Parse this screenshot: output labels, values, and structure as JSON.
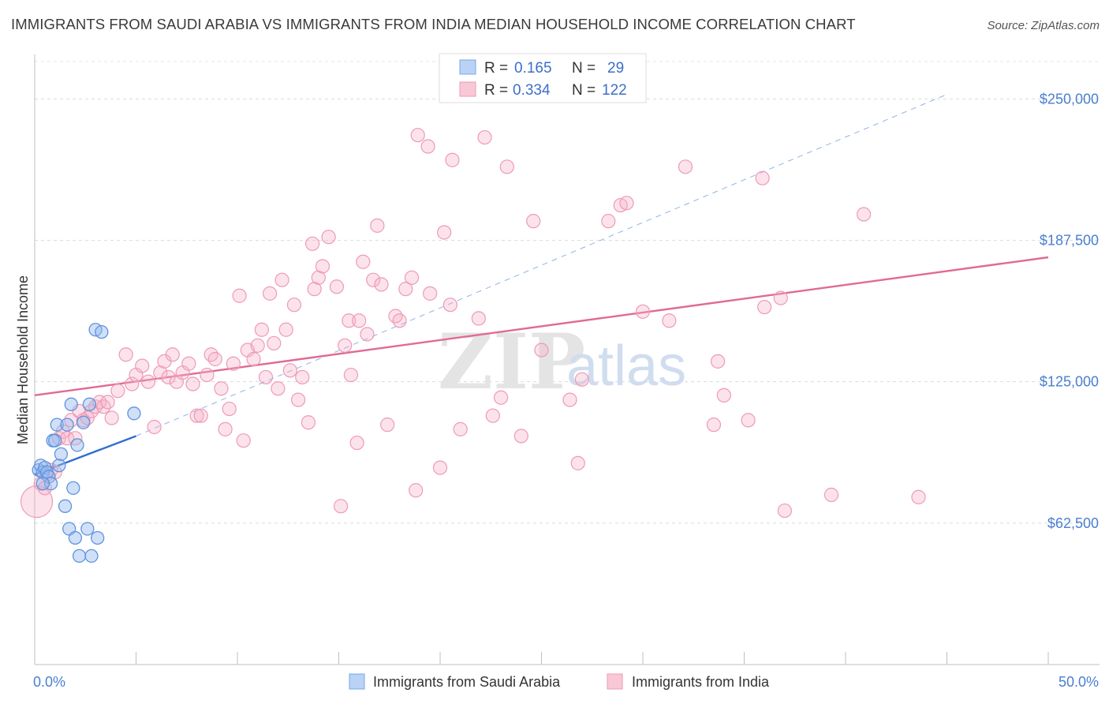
{
  "title": "IMMIGRANTS FROM SAUDI ARABIA VS IMMIGRANTS FROM INDIA MEDIAN HOUSEHOLD INCOME CORRELATION CHART",
  "source": "Source: ZipAtlas.com",
  "watermark": {
    "zip": "ZIP",
    "atlas": "atlas"
  },
  "legend_box": {
    "r_label": "R =",
    "n_label": "N =",
    "rows": [
      {
        "r": "0.165",
        "n": "29"
      },
      {
        "r": "0.334",
        "n": "122"
      }
    ]
  },
  "chart_data": {
    "type": "scatter",
    "ylabel": "Median Household Income",
    "x_tick_labels": [
      "0.0%",
      "50.0%"
    ],
    "y_tick_labels": [
      "$62,500",
      "$125,000",
      "$187,500",
      "$250,000"
    ],
    "y_ticks": [
      62500,
      125000,
      187500,
      250000
    ],
    "xlim": [
      0,
      50
    ],
    "ylim": [
      0,
      270000
    ],
    "colors": {
      "saudi": "#6fa0e8",
      "india": "#ee8aaa",
      "saudi_line": "#2f6fcf",
      "india_line": "#e06a95"
    },
    "series": [
      {
        "name": "Immigrants from Saudi Arabia",
        "r": 0.165,
        "n": 29,
        "trend": {
          "x": [
            0,
            5
          ],
          "y": [
            84000,
            101000
          ]
        },
        "trend_extended": {
          "x": [
            5,
            45
          ],
          "y": [
            101000,
            252000
          ]
        },
        "points": [
          [
            0.2,
            86000
          ],
          [
            0.3,
            88000
          ],
          [
            0.4,
            85000
          ],
          [
            0.5,
            87000
          ],
          [
            0.6,
            85000
          ],
          [
            0.7,
            83000
          ],
          [
            0.8,
            80000
          ],
          [
            0.9,
            99000
          ],
          [
            1.0,
            99000
          ],
          [
            1.1,
            106000
          ],
          [
            1.2,
            88000
          ],
          [
            1.3,
            93000
          ],
          [
            1.5,
            70000
          ],
          [
            1.6,
            106000
          ],
          [
            1.7,
            60000
          ],
          [
            1.8,
            115000
          ],
          [
            1.9,
            78000
          ],
          [
            2.0,
            56000
          ],
          [
            2.1,
            97000
          ],
          [
            2.2,
            48000
          ],
          [
            2.4,
            107000
          ],
          [
            2.6,
            60000
          ],
          [
            2.7,
            115000
          ],
          [
            2.8,
            48000
          ],
          [
            3.0,
            148000
          ],
          [
            3.1,
            56000
          ],
          [
            3.3,
            147000
          ],
          [
            4.9,
            111000
          ],
          [
            0.4,
            80000
          ]
        ]
      },
      {
        "name": "Immigrants from India",
        "r": 0.334,
        "n": 122,
        "trend": {
          "x": [
            0,
            50
          ],
          "y": [
            119000,
            180000
          ]
        },
        "points": [
          [
            0.1,
            72000
          ],
          [
            0.3,
            80000
          ],
          [
            0.5,
            78000
          ],
          [
            0.6,
            84000
          ],
          [
            0.8,
            86000
          ],
          [
            1.0,
            85000
          ],
          [
            1.2,
            100000
          ],
          [
            1.4,
            103000
          ],
          [
            1.6,
            100000
          ],
          [
            1.8,
            108000
          ],
          [
            2.0,
            100000
          ],
          [
            2.2,
            112000
          ],
          [
            2.4,
            108000
          ],
          [
            2.6,
            109000
          ],
          [
            2.8,
            112000
          ],
          [
            3.0,
            114000
          ],
          [
            3.2,
            116000
          ],
          [
            3.4,
            114000
          ],
          [
            3.6,
            116000
          ],
          [
            3.8,
            109000
          ],
          [
            4.1,
            121000
          ],
          [
            4.5,
            137000
          ],
          [
            4.8,
            124000
          ],
          [
            5.0,
            128000
          ],
          [
            5.3,
            132000
          ],
          [
            5.6,
            125000
          ],
          [
            5.9,
            105000
          ],
          [
            6.2,
            129000
          ],
          [
            6.4,
            134000
          ],
          [
            6.6,
            127000
          ],
          [
            6.8,
            137000
          ],
          [
            7.0,
            125000
          ],
          [
            7.3,
            129000
          ],
          [
            7.6,
            133000
          ],
          [
            7.8,
            124000
          ],
          [
            8.0,
            110000
          ],
          [
            8.2,
            110000
          ],
          [
            8.5,
            128000
          ],
          [
            8.7,
            137000
          ],
          [
            8.9,
            135000
          ],
          [
            9.2,
            122000
          ],
          [
            9.4,
            104000
          ],
          [
            9.6,
            113000
          ],
          [
            9.8,
            133000
          ],
          [
            10.1,
            163000
          ],
          [
            10.3,
            99000
          ],
          [
            10.5,
            139000
          ],
          [
            10.8,
            135000
          ],
          [
            11.0,
            141000
          ],
          [
            11.2,
            148000
          ],
          [
            11.4,
            127000
          ],
          [
            11.6,
            164000
          ],
          [
            11.8,
            142000
          ],
          [
            12.0,
            122000
          ],
          [
            12.2,
            170000
          ],
          [
            12.4,
            148000
          ],
          [
            12.6,
            130000
          ],
          [
            12.8,
            159000
          ],
          [
            13.0,
            117000
          ],
          [
            13.2,
            127000
          ],
          [
            13.5,
            107000
          ],
          [
            13.7,
            186000
          ],
          [
            13.8,
            166000
          ],
          [
            14.0,
            171000
          ],
          [
            14.2,
            176000
          ],
          [
            14.5,
            189000
          ],
          [
            14.9,
            167000
          ],
          [
            15.1,
            70000
          ],
          [
            15.3,
            141000
          ],
          [
            15.5,
            152000
          ],
          [
            16.0,
            152000
          ],
          [
            15.6,
            128000
          ],
          [
            15.9,
            98000
          ],
          [
            16.2,
            178000
          ],
          [
            16.4,
            146000
          ],
          [
            16.7,
            170000
          ],
          [
            16.9,
            194000
          ],
          [
            17.1,
            168000
          ],
          [
            17.4,
            106000
          ],
          [
            17.8,
            154000
          ],
          [
            18.0,
            152000
          ],
          [
            18.3,
            166000
          ],
          [
            18.6,
            171000
          ],
          [
            18.8,
            77000
          ],
          [
            18.9,
            234000
          ],
          [
            19.5,
            164000
          ],
          [
            19.4,
            229000
          ],
          [
            20.0,
            87000
          ],
          [
            20.2,
            191000
          ],
          [
            20.5,
            159000
          ],
          [
            20.6,
            223000
          ],
          [
            21.0,
            104000
          ],
          [
            21.9,
            153000
          ],
          [
            22.2,
            233000
          ],
          [
            22.6,
            110000
          ],
          [
            23.0,
            118000
          ],
          [
            23.3,
            220000
          ],
          [
            24.0,
            101000
          ],
          [
            24.6,
            196000
          ],
          [
            25.0,
            139000
          ],
          [
            26.4,
            117000
          ],
          [
            26.8,
            89000
          ],
          [
            27.0,
            126000
          ],
          [
            28.3,
            196000
          ],
          [
            28.9,
            203000
          ],
          [
            29.2,
            204000
          ],
          [
            30.0,
            156000
          ],
          [
            31.3,
            152000
          ],
          [
            32.1,
            220000
          ],
          [
            33.5,
            106000
          ],
          [
            33.7,
            134000
          ],
          [
            34.0,
            119000
          ],
          [
            35.2,
            108000
          ],
          [
            35.9,
            215000
          ],
          [
            36.0,
            158000
          ],
          [
            36.8,
            162000
          ],
          [
            37.0,
            68000
          ],
          [
            39.3,
            75000
          ],
          [
            40.9,
            199000
          ],
          [
            43.6,
            74000
          ]
        ]
      }
    ]
  },
  "bottom_legend": [
    "Immigrants from Saudi Arabia",
    "Immigrants from India"
  ]
}
